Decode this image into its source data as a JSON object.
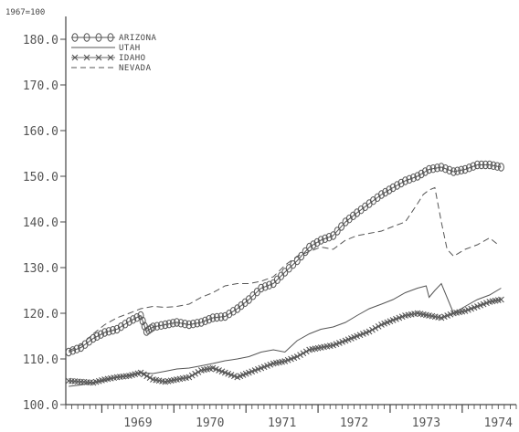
{
  "chart_data": {
    "type": "line",
    "unit_note": "1967=100",
    "ylim": [
      100,
      185
    ],
    "yticks": [
      100,
      110,
      120,
      130,
      140,
      150,
      160,
      170,
      180
    ],
    "ytick_labels": [
      "100.0",
      "110.0",
      "120.0",
      "130.0",
      "140.0",
      "150.0",
      "160.0",
      "170.0",
      "180.0"
    ],
    "xlim": [
      1968.5,
      1974.75
    ],
    "xtick_labels": [
      "1969",
      "1970",
      "1971",
      "1972",
      "1973",
      "1974"
    ],
    "legend_position": "top-left",
    "grid": false,
    "series": [
      {
        "name": "ARIZONA",
        "marker": "o",
        "x": [
          1968.54,
          1968.71,
          1968.88,
          1969.04,
          1969.21,
          1969.38,
          1969.54,
          1969.62,
          1969.71,
          1969.88,
          1970.04,
          1970.21,
          1970.38,
          1970.54,
          1970.71,
          1970.88,
          1971.04,
          1971.21,
          1971.38,
          1971.54,
          1971.71,
          1971.88,
          1972.04,
          1972.21,
          1972.38,
          1972.54,
          1972.71,
          1972.88,
          1973.04,
          1973.21,
          1973.38,
          1973.54,
          1973.71,
          1973.88,
          1974.04,
          1974.21,
          1974.38,
          1974.54
        ],
        "y": [
          111.5,
          112.5,
          114.5,
          115.8,
          116.5,
          118.2,
          119.5,
          116.0,
          117.0,
          117.5,
          118.0,
          117.5,
          118.0,
          119.0,
          119.3,
          121.0,
          123.0,
          125.5,
          126.5,
          129.0,
          131.5,
          134.5,
          136.0,
          137.0,
          140.0,
          142.0,
          144.0,
          146.0,
          147.5,
          149.0,
          150.0,
          151.5,
          152.0,
          151.0,
          151.5,
          152.5,
          152.5,
          152.0
        ]
      },
      {
        "name": "UTAH",
        "marker": "solid",
        "x": [
          1968.54,
          1968.71,
          1968.88,
          1969.04,
          1969.21,
          1969.38,
          1969.54,
          1969.71,
          1969.88,
          1970.04,
          1970.21,
          1970.38,
          1970.54,
          1970.71,
          1970.88,
          1971.04,
          1971.21,
          1971.38,
          1971.54,
          1971.71,
          1971.88,
          1972.04,
          1972.21,
          1972.38,
          1972.54,
          1972.71,
          1972.88,
          1973.04,
          1973.21,
          1973.38,
          1973.5,
          1973.54,
          1973.62,
          1973.71,
          1973.88,
          1974.04,
          1974.21,
          1974.38,
          1974.54
        ],
        "y": [
          104.0,
          104.3,
          104.8,
          105.2,
          106.0,
          106.5,
          107.0,
          106.8,
          107.3,
          107.8,
          108.0,
          108.5,
          109.0,
          109.6,
          110.0,
          110.5,
          111.5,
          112.0,
          111.5,
          114.0,
          115.5,
          116.5,
          117.0,
          118.0,
          119.5,
          121.0,
          122.0,
          123.0,
          124.5,
          125.5,
          126.0,
          123.5,
          125.0,
          126.5,
          120.0,
          121.5,
          123.0,
          124.0,
          125.5
        ]
      },
      {
        "name": "IDAHO",
        "marker": "x",
        "x": [
          1968.54,
          1968.71,
          1968.88,
          1969.04,
          1969.21,
          1969.38,
          1969.54,
          1969.71,
          1969.88,
          1970.04,
          1970.21,
          1970.38,
          1970.54,
          1970.71,
          1970.88,
          1971.04,
          1971.21,
          1971.38,
          1971.54,
          1971.71,
          1971.88,
          1972.04,
          1972.21,
          1972.38,
          1972.54,
          1972.71,
          1972.88,
          1973.04,
          1973.21,
          1973.38,
          1973.54,
          1973.71,
          1973.88,
          1974.04,
          1974.21,
          1974.38,
          1974.54
        ],
        "y": [
          105.2,
          105.0,
          104.8,
          105.5,
          106.0,
          106.3,
          107.0,
          105.5,
          105.0,
          105.5,
          106.0,
          107.5,
          108.0,
          107.0,
          106.0,
          107.0,
          108.0,
          109.0,
          109.5,
          110.5,
          112.0,
          112.5,
          113.0,
          114.0,
          115.0,
          116.0,
          117.5,
          118.5,
          119.5,
          120.0,
          119.5,
          119.0,
          120.0,
          120.5,
          121.5,
          122.5,
          123.0
        ]
      },
      {
        "name": "NEVADA",
        "marker": "dashed",
        "x": [
          1968.54,
          1968.71,
          1968.88,
          1969.04,
          1969.21,
          1969.38,
          1969.54,
          1969.71,
          1969.88,
          1970.04,
          1970.21,
          1970.38,
          1970.54,
          1970.71,
          1970.88,
          1971.04,
          1971.21,
          1971.38,
          1971.54,
          1971.71,
          1971.88,
          1972.04,
          1972.21,
          1972.38,
          1972.54,
          1972.71,
          1972.88,
          1973.04,
          1973.21,
          1973.38,
          1973.46,
          1973.54,
          1973.62,
          1973.71,
          1973.79,
          1973.88,
          1974.04,
          1974.21,
          1974.38,
          1974.5
        ],
        "y": [
          111.8,
          113.0,
          115.5,
          117.5,
          119.0,
          120.0,
          121.0,
          121.5,
          121.3,
          121.5,
          122.0,
          123.5,
          124.5,
          126.0,
          126.5,
          126.5,
          127.0,
          128.0,
          130.5,
          132.5,
          133.5,
          134.5,
          134.0,
          136.0,
          137.0,
          137.5,
          138.0,
          139.0,
          140.0,
          144.0,
          146.0,
          147.0,
          147.5,
          140.0,
          134.0,
          132.5,
          134.0,
          135.0,
          136.5,
          135.0
        ]
      }
    ]
  }
}
